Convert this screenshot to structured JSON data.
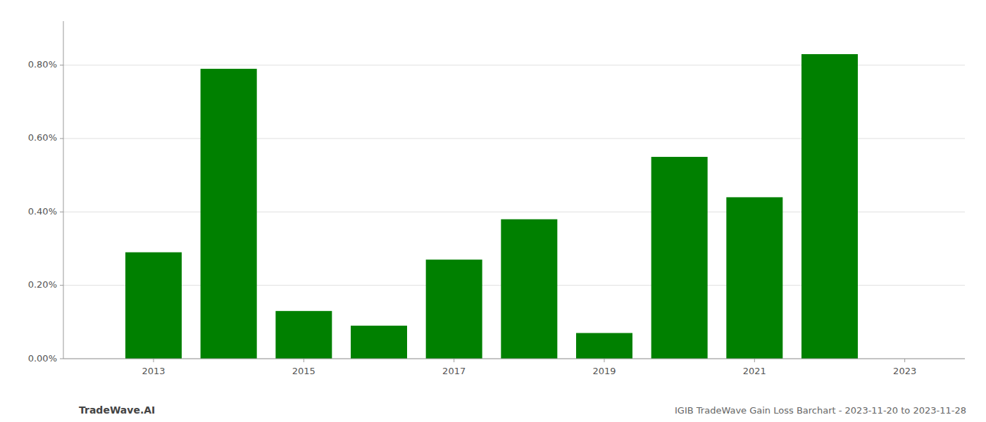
{
  "chart_data": {
    "type": "bar",
    "x": [
      2013,
      2014,
      2015,
      2016,
      2017,
      2018,
      2019,
      2020,
      2021,
      2022
    ],
    "values": [
      0.0029,
      0.0079,
      0.0013,
      0.0009,
      0.0027,
      0.0038,
      0.0007,
      0.0055,
      0.0044,
      0.0083
    ],
    "color": "#008000",
    "xlim": [
      2011.8,
      2023.8
    ],
    "xticks": [
      2013,
      2015,
      2017,
      2019,
      2021,
      2023
    ],
    "ylim": [
      0,
      0.0092
    ],
    "yticks": [
      {
        "value": 0.0,
        "label": "0.00%"
      },
      {
        "value": 0.002,
        "label": "0.20%"
      },
      {
        "value": 0.004,
        "label": "0.40%"
      },
      {
        "value": 0.006,
        "label": "0.60%"
      },
      {
        "value": 0.008,
        "label": "0.80%"
      }
    ],
    "grid": true,
    "annotations": [
      "TradeWave.AI",
      "IGIB TradeWave Gain Loss Barchart - 2023-11-20 to 2023-11-28"
    ]
  }
}
